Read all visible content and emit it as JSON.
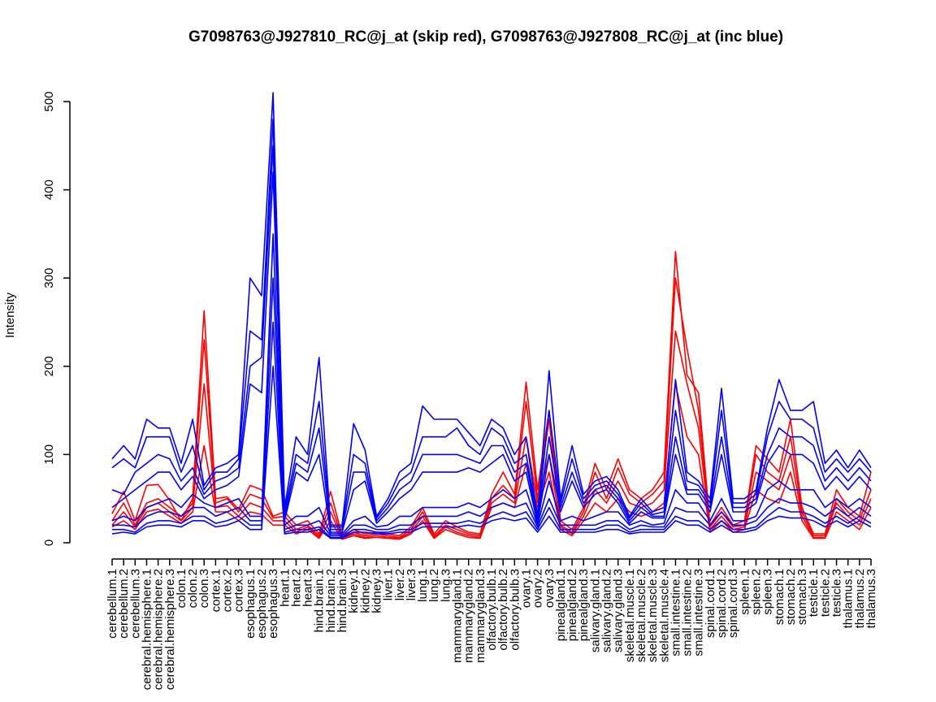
{
  "chart_data": {
    "type": "line",
    "title": "G7098763@J927810_RC@j_at (skip red), G7098763@J927808_RC@j_at (inc blue)",
    "xlabel": "",
    "ylabel": "Intensity",
    "ylim": [
      0,
      515
    ],
    "yticks": [
      0,
      100,
      200,
      300,
      400,
      500
    ],
    "grid": false,
    "legend": "none",
    "colors": {
      "skip": "#ff0000",
      "inc": "#0000ff"
    },
    "categories": [
      "cerebellum.1",
      "cerebellum.2",
      "cerebellum.3",
      "cerebral.hemisphere.1",
      "cerebral.hemisphere.2",
      "cerebral.hemisphere.3",
      "colon.1",
      "colon.2",
      "colon.3",
      "cortex.1",
      "cortex.2",
      "cortex.3",
      "esophagus.1",
      "esophagus.2",
      "esophagus.3",
      "heart.1",
      "heart.2",
      "heart.3",
      "hind.brain.1",
      "hind.brain.2",
      "hind.brain.3",
      "kidney.1",
      "kidney.2",
      "kidney.3",
      "liver.1",
      "liver.2",
      "liver.3",
      "lung.1",
      "lung.2",
      "lung.3",
      "mammarygland.1",
      "mammarygland.2",
      "mammarygland.3",
      "olfactory.bulb.1",
      "olfactory.bulb.2",
      "olfactory.bulb.3",
      "ovary.1",
      "ovary.2",
      "ovary.3",
      "pinealgland.1",
      "pinealgland.2",
      "pinealgland.3",
      "salivary.gland.1",
      "salivary.gland.2",
      "salivary.gland.3",
      "skeletal.muscle.1",
      "skeletal.muscle.2",
      "skeletal.muscle.3",
      "skeletal.muscle.4",
      "small.intestine.1",
      "small.intestine.2",
      "small.intestine.3",
      "spinal.cord.1",
      "spinal.cord.2",
      "spinal.cord.3",
      "spleen.1",
      "spleen.2",
      "spleen.3",
      "stomach.1",
      "stomach.2",
      "stomach.3",
      "testicle.1",
      "testicle.2",
      "testicle.3",
      "thalamus.1",
      "thalamus.2",
      "thalamus.3"
    ],
    "series": [
      {
        "group": "skip",
        "values": [
          33,
          58,
          25,
          65,
          66,
          48,
          25,
          50,
          263,
          50,
          52,
          38,
          65,
          60,
          30,
          35,
          20,
          25,
          10,
          58,
          8,
          15,
          10,
          12,
          10,
          8,
          18,
          40,
          10,
          25,
          18,
          12,
          10,
          55,
          80,
          55,
          182,
          60,
          150,
          25,
          15,
          40,
          90,
          60,
          95,
          60,
          50,
          60,
          80,
          330,
          190,
          170,
          20,
          40,
          20,
          25,
          110,
          95,
          80,
          140,
          40,
          10,
          10,
          60,
          40,
          30,
          80
        ]
      },
      {
        "group": "skip",
        "values": [
          25,
          45,
          20,
          45,
          50,
          40,
          30,
          45,
          230,
          45,
          50,
          35,
          55,
          50,
          28,
          30,
          15,
          20,
          8,
          45,
          6,
          12,
          8,
          10,
          8,
          6,
          15,
          35,
          8,
          20,
          15,
          10,
          8,
          50,
          65,
          50,
          160,
          50,
          140,
          20,
          12,
          35,
          80,
          50,
          85,
          55,
          45,
          55,
          70,
          300,
          220,
          150,
          18,
          35,
          18,
          20,
          100,
          80,
          70,
          120,
          35,
          8,
          8,
          50,
          35,
          25,
          60
        ]
      },
      {
        "group": "skip",
        "values": [
          20,
          35,
          18,
          40,
          45,
          35,
          25,
          40,
          180,
          40,
          42,
          30,
          45,
          40,
          25,
          25,
          12,
          18,
          6,
          35,
          5,
          10,
          6,
          8,
          6,
          5,
          12,
          30,
          6,
          18,
          12,
          8,
          6,
          45,
          55,
          45,
          120,
          45,
          100,
          18,
          10,
          30,
          60,
          45,
          70,
          45,
          40,
          45,
          60,
          240,
          180,
          130,
          15,
          30,
          15,
          18,
          80,
          70,
          60,
          100,
          30,
          6,
          6,
          45,
          30,
          20,
          50
        ]
      },
      {
        "group": "skip",
        "values": [
          18,
          25,
          15,
          35,
          38,
          30,
          22,
          35,
          110,
          35,
          35,
          25,
          35,
          32,
          20,
          20,
          10,
          15,
          5,
          25,
          4,
          8,
          5,
          6,
          5,
          4,
          10,
          25,
          5,
          15,
          10,
          6,
          5,
          40,
          45,
          40,
          90,
          40,
          80,
          15,
          8,
          25,
          45,
          35,
          50,
          35,
          30,
          35,
          45,
          180,
          120,
          100,
          12,
          25,
          12,
          15,
          60,
          50,
          45,
          80,
          25,
          5,
          5,
          35,
          25,
          15,
          40
        ]
      },
      {
        "group": "inc",
        "values": [
          95,
          110,
          95,
          140,
          130,
          130,
          90,
          140,
          65,
          85,
          90,
          100,
          300,
          280,
          510,
          40,
          120,
          100,
          210,
          20,
          20,
          135,
          105,
          30,
          50,
          80,
          90,
          155,
          140,
          140,
          140,
          125,
          110,
          140,
          130,
          100,
          120,
          30,
          195,
          50,
          110,
          55,
          70,
          75,
          60,
          30,
          50,
          35,
          40,
          185,
          80,
          70,
          50,
          175,
          50,
          50,
          60,
          130,
          185,
          150,
          150,
          160,
          90,
          105,
          85,
          105,
          85
        ]
      },
      {
        "group": "inc",
        "values": [
          85,
          95,
          85,
          120,
          120,
          120,
          80,
          110,
          60,
          80,
          80,
          95,
          240,
          230,
          480,
          35,
          100,
          90,
          160,
          18,
          18,
          100,
          90,
          28,
          45,
          70,
          80,
          120,
          120,
          120,
          130,
          110,
          100,
          130,
          120,
          90,
          100,
          28,
          150,
          45,
          95,
          50,
          65,
          70,
          55,
          28,
          45,
          32,
          35,
          150,
          70,
          65,
          45,
          150,
          45,
          45,
          55,
          120,
          160,
          140,
          140,
          130,
          80,
          95,
          80,
          95,
          80
        ]
      },
      {
        "group": "inc",
        "values": [
          60,
          55,
          80,
          90,
          100,
          95,
          70,
          85,
          55,
          70,
          75,
          85,
          200,
          210,
          450,
          30,
          90,
          80,
          130,
          15,
          15,
          80,
          80,
          25,
          40,
          60,
          70,
          100,
          100,
          100,
          100,
          95,
          90,
          110,
          110,
          80,
          90,
          25,
          120,
          40,
          80,
          45,
          60,
          65,
          50,
          25,
          40,
          30,
          30,
          120,
          60,
          60,
          40,
          120,
          40,
          40,
          50,
          100,
          130,
          120,
          120,
          110,
          70,
          85,
          70,
          85,
          70
        ]
      },
      {
        "group": "inc",
        "values": [
          40,
          50,
          60,
          70,
          80,
          80,
          60,
          75,
          50,
          60,
          65,
          75,
          180,
          170,
          420,
          25,
          80,
          70,
          100,
          12,
          12,
          60,
          70,
          22,
          35,
          50,
          60,
          80,
          80,
          80,
          80,
          85,
          80,
          90,
          100,
          70,
          80,
          22,
          100,
          35,
          70,
          40,
          55,
          60,
          45,
          22,
          35,
          28,
          28,
          100,
          55,
          55,
          35,
          100,
          35,
          35,
          45,
          90,
          110,
          100,
          100,
          90,
          60,
          75,
          60,
          75,
          60
        ]
      },
      {
        "group": "inc",
        "values": [
          25,
          30,
          25,
          40,
          45,
          50,
          40,
          55,
          45,
          40,
          45,
          50,
          30,
          30,
          350,
          20,
          30,
          30,
          40,
          10,
          10,
          25,
          30,
          18,
          20,
          30,
          30,
          40,
          40,
          40,
          40,
          45,
          40,
          50,
          60,
          50,
          60,
          20,
          70,
          25,
          30,
          25,
          30,
          35,
          35,
          20,
          25,
          20,
          22,
          60,
          45,
          45,
          25,
          50,
          25,
          25,
          30,
          60,
          70,
          60,
          60,
          60,
          40,
          50,
          40,
          50,
          40
        ]
      },
      {
        "group": "inc",
        "values": [
          20,
          20,
          18,
          30,
          35,
          35,
          30,
          40,
          40,
          30,
          35,
          40,
          25,
          25,
          300,
          15,
          20,
          20,
          25,
          8,
          8,
          20,
          20,
          15,
          15,
          20,
          20,
          30,
          30,
          30,
          30,
          35,
          30,
          40,
          45,
          40,
          45,
          18,
          50,
          20,
          20,
          20,
          20,
          25,
          25,
          15,
          20,
          18,
          18,
          40,
          35,
          35,
          20,
          35,
          20,
          20,
          25,
          40,
          50,
          45,
          45,
          40,
          30,
          40,
          30,
          40,
          30
        ]
      },
      {
        "group": "inc",
        "values": [
          15,
          15,
          12,
          22,
          25,
          25,
          22,
          30,
          30,
          22,
          25,
          30,
          20,
          20,
          250,
          12,
          15,
          15,
          18,
          6,
          6,
          15,
          15,
          12,
          12,
          15,
          15,
          22,
          22,
          22,
          22,
          25,
          22,
          30,
          35,
          30,
          35,
          15,
          40,
          15,
          15,
          15,
          15,
          20,
          20,
          12,
          15,
          15,
          15,
          30,
          25,
          25,
          15,
          25,
          15,
          15,
          18,
          30,
          40,
          35,
          35,
          30,
          22,
          30,
          22,
          30,
          22
        ]
      },
      {
        "group": "inc",
        "values": [
          10,
          12,
          10,
          18,
          20,
          20,
          18,
          25,
          25,
          18,
          20,
          25,
          15,
          15,
          200,
          10,
          12,
          12,
          15,
          5,
          5,
          12,
          12,
          10,
          10,
          12,
          12,
          18,
          18,
          18,
          18,
          20,
          18,
          25,
          28,
          25,
          28,
          12,
          30,
          12,
          12,
          12,
          12,
          15,
          15,
          10,
          12,
          12,
          12,
          25,
          20,
          20,
          12,
          20,
          12,
          12,
          15,
          25,
          30,
          28,
          28,
          25,
          18,
          25,
          18,
          25,
          18
        ]
      }
    ]
  }
}
